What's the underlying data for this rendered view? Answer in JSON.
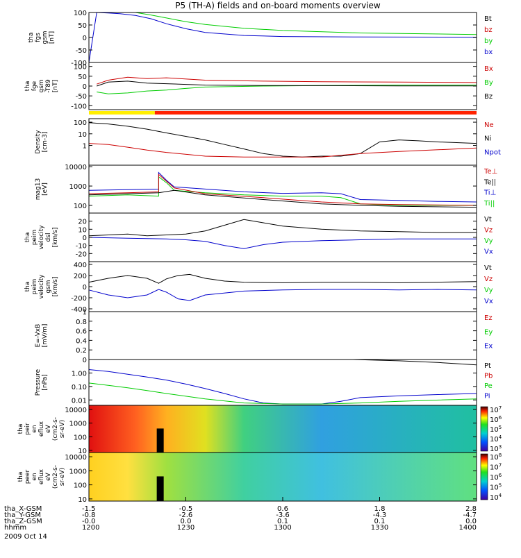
{
  "title": "P5 (TH-A) fields and on-board moments overview",
  "colors": {
    "black": "#000000",
    "red": "#cc0000",
    "green": "#00cc00",
    "blue": "#0000cc"
  },
  "chart_data": [
    {
      "type": "line",
      "ylabel": [
        "tha",
        "fgs",
        "gsm",
        "[nT]"
      ],
      "ylim": [
        -100,
        100
      ],
      "yticks": [
        100,
        50,
        0,
        -50,
        -100
      ],
      "yscale": "linear",
      "legend": [
        {
          "name": "Bt",
          "color": "black"
        },
        {
          "name": "bz",
          "color": "red"
        },
        {
          "name": "by",
          "color": "green"
        },
        {
          "name": "bx",
          "color": "blue"
        }
      ],
      "series": [
        {
          "name": "bx",
          "color": "blue",
          "x": [
            0.0,
            0.02,
            0.05,
            0.08,
            0.12,
            0.16,
            0.2,
            0.25,
            0.3,
            0.4,
            0.5,
            0.7,
            1.0
          ],
          "y": [
            -100,
            100,
            98,
            95,
            88,
            75,
            55,
            35,
            20,
            8,
            4,
            2,
            1
          ]
        },
        {
          "name": "by",
          "color": "green",
          "x": [
            0.12,
            0.16,
            0.2,
            0.25,
            0.3,
            0.4,
            0.5,
            0.7,
            1.0
          ],
          "y": [
            100,
            90,
            78,
            63,
            52,
            37,
            28,
            18,
            12
          ]
        }
      ]
    },
    {
      "type": "line",
      "ylabel": [
        "tha",
        "fge",
        "gsm",
        "-T89",
        "[nT]"
      ],
      "ylim": [
        -120,
        120
      ],
      "yticks": [
        100,
        50,
        0,
        -50,
        -100
      ],
      "yscale": "linear",
      "legend": [
        {
          "name": "Bx",
          "color": "red"
        },
        {
          "name": "By",
          "color": "green"
        },
        {
          "name": "Bz",
          "color": "black"
        }
      ],
      "series": [
        {
          "name": "Bx",
          "color": "red",
          "x": [
            0.02,
            0.05,
            0.1,
            0.15,
            0.2,
            0.3,
            0.45,
            0.6,
            0.8,
            1.0
          ],
          "y": [
            10,
            30,
            45,
            38,
            42,
            30,
            25,
            22,
            20,
            18
          ]
        },
        {
          "name": "By",
          "color": "green",
          "x": [
            0.02,
            0.05,
            0.1,
            0.15,
            0.2,
            0.25,
            0.3,
            0.45,
            0.6,
            0.8,
            1.0
          ],
          "y": [
            -30,
            -40,
            -35,
            -25,
            -20,
            -12,
            -5,
            0,
            3,
            5,
            5
          ]
        },
        {
          "name": "Bz",
          "color": "black",
          "x": [
            0.02,
            0.05,
            0.1,
            0.15,
            0.2,
            0.3,
            0.45,
            0.6,
            0.8,
            1.0
          ],
          "y": [
            0,
            20,
            25,
            15,
            12,
            5,
            3,
            2,
            1,
            1
          ]
        }
      ]
    },
    {
      "type": "line",
      "ylabel": [
        "Density",
        "[cm-3]"
      ],
      "ylim": [
        0.02,
        200
      ],
      "yticks": [
        100,
        10,
        1
      ],
      "yscale": "log",
      "legend": [
        {
          "name": "Ne",
          "color": "red"
        },
        {
          "name": "Ni",
          "color": "black"
        },
        {
          "name": "Npot",
          "color": "blue"
        }
      ],
      "series": [
        {
          "name": "Ni",
          "color": "black",
          "x": [
            0.0,
            0.05,
            0.1,
            0.15,
            0.2,
            0.25,
            0.3,
            0.35,
            0.4,
            0.45,
            0.5,
            0.55,
            0.6,
            0.65,
            0.7,
            0.72,
            0.75,
            0.8,
            0.85,
            0.9,
            1.0
          ],
          "y": [
            90,
            70,
            45,
            25,
            12,
            6,
            3,
            1.2,
            0.5,
            0.2,
            0.12,
            0.1,
            0.12,
            0.12,
            0.2,
            0.5,
            2,
            3,
            2.5,
            2,
            1.5
          ]
        },
        {
          "name": "Ne",
          "color": "red",
          "x": [
            0.0,
            0.05,
            0.1,
            0.15,
            0.2,
            0.3,
            0.4,
            0.5,
            0.6,
            0.7,
            0.8,
            1.0
          ],
          "y": [
            1.5,
            1.2,
            0.7,
            0.4,
            0.25,
            0.12,
            0.1,
            0.1,
            0.1,
            0.2,
            0.3,
            0.6
          ]
        }
      ]
    },
    {
      "type": "line",
      "ylabel": [
        "mag13",
        "[eV]"
      ],
      "ylim": [
        40,
        12000
      ],
      "yticks": [
        10000,
        1000,
        100
      ],
      "yscale": "log",
      "legend": [
        {
          "name": "Te⊥",
          "color": "red"
        },
        {
          "name": "Te||",
          "color": "black"
        },
        {
          "name": "Ti⊥",
          "color": "blue"
        },
        {
          "name": "Ti||",
          "color": "green"
        }
      ],
      "series": [
        {
          "name": "Ti⊥",
          "color": "blue",
          "x": [
            0.0,
            0.1,
            0.18,
            0.18,
            0.2,
            0.22,
            0.3,
            0.4,
            0.5,
            0.6,
            0.65,
            0.7,
            0.8,
            0.9,
            1.0
          ],
          "y": [
            600,
            650,
            700,
            5000,
            2000,
            900,
            700,
            500,
            420,
            450,
            400,
            200,
            180,
            160,
            150
          ]
        },
        {
          "name": "Ti||",
          "color": "green",
          "x": [
            0.0,
            0.1,
            0.18,
            0.18,
            0.2,
            0.22,
            0.3,
            0.4,
            0.5,
            0.6,
            0.65,
            0.7,
            0.8,
            0.9,
            1.0
          ],
          "y": [
            300,
            350,
            300,
            3000,
            1500,
            600,
            450,
            350,
            300,
            300,
            250,
            120,
            100,
            100,
            100
          ]
        },
        {
          "name": "Te⊥",
          "color": "red",
          "x": [
            0.0,
            0.1,
            0.18,
            0.18,
            0.22,
            0.3,
            0.45,
            0.6,
            0.7,
            0.8,
            1.0
          ],
          "y": [
            400,
            450,
            500,
            4000,
            800,
            400,
            250,
            150,
            120,
            110,
            100
          ]
        },
        {
          "name": "Te||",
          "color": "black",
          "x": [
            0.0,
            0.1,
            0.18,
            0.22,
            0.3,
            0.45,
            0.6,
            0.7,
            0.8,
            1.0
          ],
          "y": [
            350,
            400,
            450,
            600,
            350,
            200,
            120,
            100,
            90,
            80
          ]
        }
      ]
    },
    {
      "type": "line",
      "ylabel": [
        "tha",
        "peim",
        "velocity",
        "dsl",
        "[km/s]"
      ],
      "ylim": [
        -30,
        30
      ],
      "yticks": [
        20,
        10,
        0,
        -10,
        -20
      ],
      "yscale": "linear",
      "legend": [
        {
          "name": "Vt",
          "color": "black"
        },
        {
          "name": "Vz",
          "color": "red"
        },
        {
          "name": "Vy",
          "color": "green"
        },
        {
          "name": "Vx",
          "color": "blue"
        }
      ],
      "series": [
        {
          "name": "Vt",
          "color": "black",
          "x": [
            0.0,
            0.05,
            0.1,
            0.15,
            0.2,
            0.25,
            0.3,
            0.35,
            0.4,
            0.45,
            0.5,
            0.55,
            0.6,
            0.7,
            0.8,
            0.9,
            1.0
          ],
          "y": [
            2,
            3,
            4,
            2,
            3,
            4,
            8,
            15,
            22,
            18,
            14,
            12,
            10,
            8,
            7,
            6,
            6
          ]
        },
        {
          "name": "Vx",
          "color": "blue",
          "x": [
            0.0,
            0.1,
            0.2,
            0.25,
            0.3,
            0.35,
            0.4,
            0.45,
            0.5,
            0.6,
            0.7,
            0.8,
            1.0
          ],
          "y": [
            0,
            -1,
            -2,
            -3,
            -5,
            -10,
            -14,
            -9,
            -6,
            -4,
            -3,
            -2,
            -2
          ]
        }
      ]
    },
    {
      "type": "line",
      "ylabel": [
        "tha",
        "peim",
        "velocity",
        "gsm",
        "[km/s]"
      ],
      "ylim": [
        -450,
        450
      ],
      "yticks": [
        400,
        200,
        0,
        -200,
        -400
      ],
      "yscale": "linear",
      "legend": [
        {
          "name": "Vt",
          "color": "black"
        },
        {
          "name": "Vz",
          "color": "red"
        },
        {
          "name": "Vy",
          "color": "green"
        },
        {
          "name": "Vx",
          "color": "blue"
        }
      ],
      "series": [
        {
          "name": "Vt",
          "color": "black",
          "x": [
            0.0,
            0.05,
            0.1,
            0.15,
            0.18,
            0.2,
            0.23,
            0.26,
            0.3,
            0.35,
            0.4,
            0.5,
            0.6,
            0.7,
            0.8,
            0.9,
            1.0
          ],
          "y": [
            80,
            150,
            200,
            150,
            60,
            140,
            200,
            220,
            150,
            100,
            80,
            70,
            80,
            80,
            70,
            80,
            90
          ]
        },
        {
          "name": "Vx",
          "color": "blue",
          "x": [
            0.0,
            0.05,
            0.1,
            0.15,
            0.18,
            0.2,
            0.23,
            0.26,
            0.3,
            0.4,
            0.5,
            0.6,
            0.7,
            0.8,
            0.9,
            1.0
          ],
          "y": [
            -60,
            -150,
            -200,
            -150,
            -50,
            -100,
            -220,
            -250,
            -150,
            -80,
            -60,
            -50,
            -50,
            -60,
            -50,
            -60
          ]
        }
      ]
    },
    {
      "type": "line",
      "ylabel": [
        "E=-VxB",
        "[mV/m]"
      ],
      "ylim": [
        0.0,
        1.0
      ],
      "yticks": [
        1.0,
        0.8,
        0.6,
        0.4,
        0.2,
        0.0
      ],
      "yscale": "linear",
      "legend": [
        {
          "name": "Ez",
          "color": "red"
        },
        {
          "name": "Ey",
          "color": "green"
        },
        {
          "name": "Ex",
          "color": "blue"
        }
      ],
      "series": []
    },
    {
      "type": "line",
      "ylabel": [
        "Pressure",
        "[nPa]"
      ],
      "ylim": [
        0.004,
        10
      ],
      "yticks": [
        1.0,
        0.1,
        0.01
      ],
      "ytick_labels": [
        "1.00",
        "0.10",
        "0.01"
      ],
      "yscale": "log",
      "legend": [
        {
          "name": "Pt",
          "color": "black"
        },
        {
          "name": "Pb",
          "color": "red"
        },
        {
          "name": "Pe",
          "color": "green"
        },
        {
          "name": "Pi",
          "color": "blue"
        }
      ],
      "series": [
        {
          "name": "Pt",
          "color": "black",
          "x": [
            0.68,
            0.8,
            0.9,
            1.0
          ],
          "y": [
            10,
            8,
            6,
            4
          ]
        },
        {
          "name": "Pi",
          "color": "blue",
          "x": [
            0.0,
            0.05,
            0.1,
            0.15,
            0.2,
            0.25,
            0.3,
            0.35,
            0.4,
            0.45,
            0.5,
            0.55,
            0.6,
            0.65,
            0.7,
            0.8,
            0.9,
            1.0
          ],
          "y": [
            1.8,
            1.3,
            0.8,
            0.5,
            0.3,
            0.15,
            0.07,
            0.03,
            0.012,
            0.006,
            0.005,
            0.005,
            0.005,
            0.008,
            0.015,
            0.02,
            0.025,
            0.03
          ]
        },
        {
          "name": "Pe",
          "color": "green",
          "x": [
            0.0,
            0.05,
            0.1,
            0.15,
            0.2,
            0.3,
            0.4,
            0.5,
            0.6,
            0.7,
            0.8,
            1.0
          ],
          "y": [
            0.18,
            0.12,
            0.08,
            0.05,
            0.03,
            0.012,
            0.006,
            0.005,
            0.005,
            0.006,
            0.008,
            0.012
          ]
        }
      ]
    },
    {
      "type": "heatmap",
      "ylabel": [
        "tha",
        "peir",
        "en",
        "eflux",
        "eV",
        "(cm2-s-",
        "sr-eV)"
      ],
      "yscale": "log",
      "yticks": [
        10000,
        1000,
        100,
        10
      ],
      "colorbar_ticks": [
        "10^7",
        "10^6",
        "10^5",
        "10^4",
        "10^3"
      ]
    },
    {
      "type": "heatmap",
      "ylabel": [
        "tha",
        "peer",
        "en",
        "eflux",
        "eV",
        "(cm2-s-",
        "sr-eV)"
      ],
      "yscale": "log",
      "yticks": [
        10000,
        1000,
        100,
        10
      ],
      "colorbar_ticks": [
        "10^8",
        "10^7",
        "10^6",
        "10^5",
        "10^4"
      ]
    }
  ],
  "xaxis": {
    "rows": [
      {
        "label": "tha_X-GSM",
        "values": [
          "-1.5",
          "-0.5",
          "0.6",
          "1.8",
          "2.8"
        ]
      },
      {
        "label": "tha_Y-GSM",
        "values": [
          "-0.8",
          "-2.6",
          "-3.6",
          "-4.3",
          "-4.7"
        ]
      },
      {
        "label": "tha_Z-GSM",
        "values": [
          "-0.0",
          "0.0",
          "0.1",
          "0.1",
          "0.0"
        ]
      },
      {
        "label": "hhmm",
        "values": [
          "1200",
          "1230",
          "1300",
          "1330",
          "1400"
        ]
      }
    ],
    "date": "2009 Oct 14"
  },
  "status_bar": {
    "segments": [
      {
        "from": 0.0,
        "to": 0.17,
        "color": "#ffee00"
      },
      {
        "from": 0.17,
        "to": 1.0,
        "color": "#ff2200"
      }
    ]
  }
}
